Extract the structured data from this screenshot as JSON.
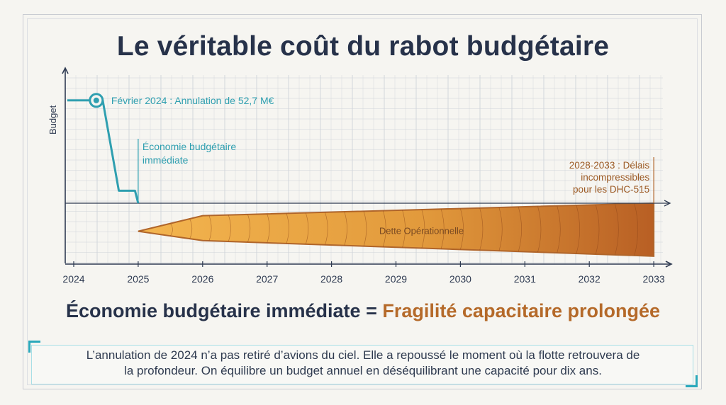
{
  "title": "Le véritable coût du rabot budgétaire",
  "chart_data": {
    "type": "line",
    "xlabel": "",
    "ylabel": "Budget",
    "x_ticks": [
      "2024",
      "2025",
      "2026",
      "2027",
      "2028",
      "2029",
      "2030",
      "2031",
      "2032",
      "2033"
    ],
    "xlim": [
      2024,
      2033
    ],
    "series": [
      {
        "values": [
          [
            2023.9,
            3.3
          ],
          [
            2024.3,
            3.3
          ],
          [
            2024.45,
            3.3
          ],
          [
            2024.7,
            0.4
          ],
          [
            2024.95,
            0.4
          ],
          [
            2025,
            0
          ]
        ]
      }
    ],
    "debt_band": {
      "label": "Dette Opérationnelle",
      "upper": [
        [
          2025,
          -0.9
        ],
        [
          2026,
          -0.4
        ],
        [
          2033,
          0
        ]
      ],
      "lower": [
        [
          2025,
          -0.9
        ],
        [
          2026,
          -1.2
        ],
        [
          2033,
          -1.7
        ]
      ]
    },
    "annotations": [
      {
        "text": "Février 2024 : Annulation de 52,7 M€",
        "x": 2024.35
      },
      {
        "lines": [
          "Économie budgétaire",
          "immédiate"
        ],
        "x": 2025
      },
      {
        "lines": [
          "2028-2033 : Délais",
          "incompressibles",
          "pour les DHC-515"
        ],
        "x": 2033
      }
    ],
    "grid": true,
    "colors": {
      "budget_line": "#2f9fb0",
      "debt_light": "#f3b54f",
      "debt_dark": "#b85f24",
      "axis": "#2f3b52",
      "grid": "#cfd3d9"
    }
  },
  "equation": {
    "left": "Économie budgétaire immédiate",
    "operator": "=",
    "right": "Fragilité capacitaire prolongée"
  },
  "note": {
    "line1": "L’annulation de 2024 n’a pas retiré d’avions du ciel. Elle a repoussé le moment où la flotte retrouvera de",
    "line2": "la profondeur. On équilibre un budget annuel en déséquilibrant une capacité pour dix ans."
  }
}
